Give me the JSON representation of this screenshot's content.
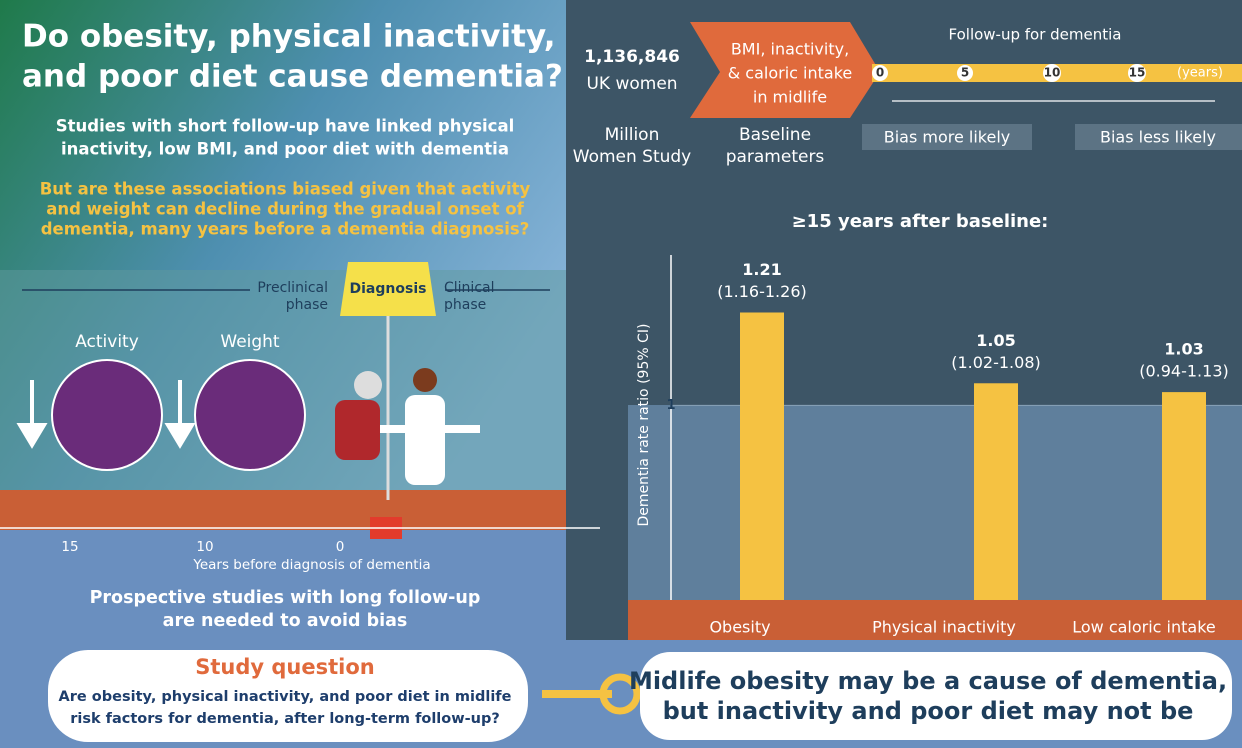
{
  "title_lines": [
    "Do obesity, physical inactivity,",
    "and poor diet cause dementia?"
  ],
  "intro": [
    "Studies with short follow-up have linked physical",
    "inactivity, low BMI, and poor diet with dementia"
  ],
  "bias_question": [
    "But are these associations biased given that activity",
    "and weight can decline during the gradual onset of",
    "dementia, many years before a dementia diagnosis?"
  ],
  "phase": {
    "preclinical": [
      "Preclinical",
      "phase"
    ],
    "diagnosis": "Diagnosis",
    "clinical": [
      "Clinical",
      "phase"
    ]
  },
  "factors": [
    "Activity",
    "Weight"
  ],
  "timeline": {
    "ticks": [
      "15",
      "10",
      "0"
    ],
    "label": "Years before diagnosis of dementia"
  },
  "conclusion_left": [
    "Prospective studies with long follow-up",
    "are needed to avoid bias"
  ],
  "study": {
    "women_count": "1,136,846",
    "women_label": "UK women",
    "cohort": [
      "Million",
      "Women Study"
    ],
    "baseline": [
      "BMI, inactivity,",
      "& caloric intake",
      "in midlife"
    ],
    "baseline_label": [
      "Baseline",
      "parameters"
    ],
    "followup": "Follow-up for dementia",
    "years": [
      "0",
      "5",
      "10",
      "15"
    ],
    "years_unit": "(years)",
    "bias": [
      "Bias more likely",
      "Bias less likely"
    ]
  },
  "chart_data": {
    "type": "bar",
    "title": "≥15 years after baseline:",
    "y_label": "Dementia rate ratio (95% CI)",
    "categories": [
      "Obesity",
      "Physical inactivity",
      "Low caloric intake"
    ],
    "values": [
      1.21,
      1.05,
      1.03
    ],
    "ci_labels": [
      "(1.16-1.26)",
      "(1.02-1.08)",
      "(0.94-1.13)"
    ],
    "color": "#f5c242",
    "ylim": [
      0.56,
      1.34
    ],
    "yticks": [
      1
    ]
  },
  "question": {
    "title": "Study question",
    "lines": [
      "Are obesity, physical inactivity, and poor diet in midlife",
      "risk factors for dementia, after long-term follow-up?"
    ]
  },
  "answer": [
    "Midlife obesity may be a cause of dementia,",
    "but inactivity and poor diet may not be"
  ]
}
